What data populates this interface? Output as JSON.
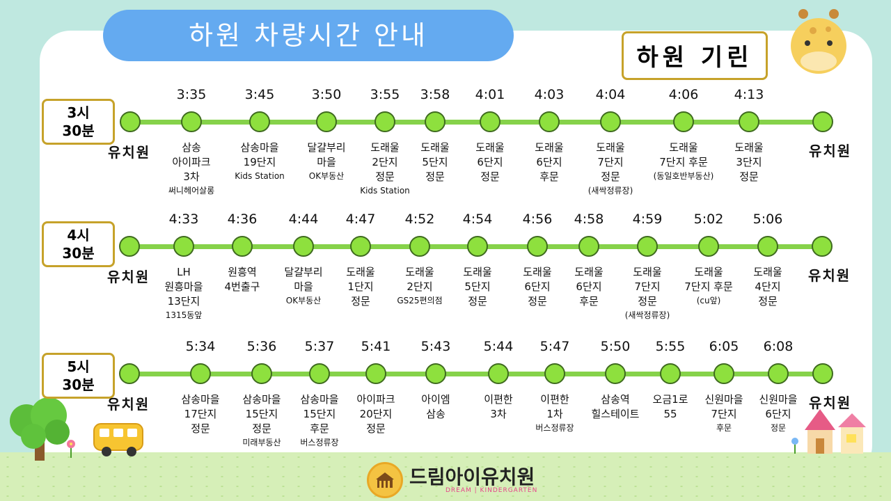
{
  "title": "하원 차량시간 안내",
  "vehicle_name": "하원 기린",
  "end_label": "유치원",
  "logo": {
    "name": "드림아이유치원",
    "sub": "DREAM | KINDERGARTEN"
  },
  "rows": [
    {
      "time_line1": "3시",
      "time_line2": "30분",
      "stops": [
        {
          "time": "3:35",
          "name": "삼송\n아이파크\n3차",
          "sub": "써니헤어살롱"
        },
        {
          "time": "3:45",
          "name": "삼송마을\n19단지",
          "sub": "Kids Station"
        },
        {
          "time": "3:50",
          "name": "달걀부리\n마을",
          "sub": "OK부동산"
        },
        {
          "time": "3:55",
          "name": "도래울\n2단지\n정문",
          "sub": "Kids Station"
        },
        {
          "time": "3:58",
          "name": "도래울\n5단지\n정문",
          "sub": ""
        },
        {
          "time": "4:01",
          "name": "도래울\n6단지\n정문",
          "sub": ""
        },
        {
          "time": "4:03",
          "name": "도래울\n6단지\n후문",
          "sub": ""
        },
        {
          "time": "4:04",
          "name": "도래울\n7단지\n정문",
          "sub": "(새싹정류장)"
        },
        {
          "time": "4:06",
          "name": "도래울\n7단지 후문",
          "sub": "(동일호반부동산)"
        },
        {
          "time": "4:13",
          "name": "도래울\n3단지\n정문",
          "sub": ""
        }
      ]
    },
    {
      "time_line1": "4시",
      "time_line2": "30분",
      "stops": [
        {
          "time": "4:33",
          "name": "LH\n원흥마을\n13단지",
          "sub": "1315동앞"
        },
        {
          "time": "4:36",
          "name": "원흥역\n4번출구",
          "sub": ""
        },
        {
          "time": "4:44",
          "name": "달걀부리\n마을",
          "sub": "OK부동산"
        },
        {
          "time": "4:47",
          "name": "도래울\n1단지\n정문",
          "sub": ""
        },
        {
          "time": "4:52",
          "name": "도래울\n2단지",
          "sub": "GS25편의점"
        },
        {
          "time": "4:54",
          "name": "도래울\n5단지\n정문",
          "sub": ""
        },
        {
          "time": "4:56",
          "name": "도래울\n6단지\n정문",
          "sub": ""
        },
        {
          "time": "4:58",
          "name": "도래울\n6단지\n후문",
          "sub": ""
        },
        {
          "time": "4:59",
          "name": "도래울\n7단지\n정문",
          "sub": "(새싹정류장)"
        },
        {
          "time": "5:02",
          "name": "도래울\n7단지 후문",
          "sub": "(cu앞)"
        },
        {
          "time": "5:06",
          "name": "도래울\n4단지\n정문",
          "sub": ""
        }
      ]
    },
    {
      "time_line1": "5시",
      "time_line2": "30분",
      "stops": [
        {
          "time": "5:34",
          "name": "삼송마을\n17단지\n정문",
          "sub": ""
        },
        {
          "time": "5:36",
          "name": "삼송마을\n15단지\n정문",
          "sub": "미래부동산"
        },
        {
          "time": "5:37",
          "name": "삼송마을\n15단지\n후문",
          "sub": "버스정류장"
        },
        {
          "time": "5:41",
          "name": "아이파크\n20단지\n정문",
          "sub": ""
        },
        {
          "time": "5:43",
          "name": "아이엠\n삼송",
          "sub": ""
        },
        {
          "time": "5:44",
          "name": "이편한\n3차",
          "sub": ""
        },
        {
          "time": "5:47",
          "name": "이편한\n1차",
          "sub": "버스정류장"
        },
        {
          "time": "5:50",
          "name": "삼송역\n힐스테이트",
          "sub": ""
        },
        {
          "time": "5:55",
          "name": "오금1로\n55",
          "sub": ""
        },
        {
          "time": "6:05",
          "name": "신원마을\n7단지",
          "sub": "후문"
        },
        {
          "time": "6:08",
          "name": "신원마을\n6단지",
          "sub": "정문"
        }
      ]
    }
  ],
  "colors": {
    "background": "#bfe8e0",
    "title_pill": "#64aaf0",
    "frame": "#c6a22a",
    "route_line": "#86d24a",
    "stop_dot": "#8ee03e"
  }
}
